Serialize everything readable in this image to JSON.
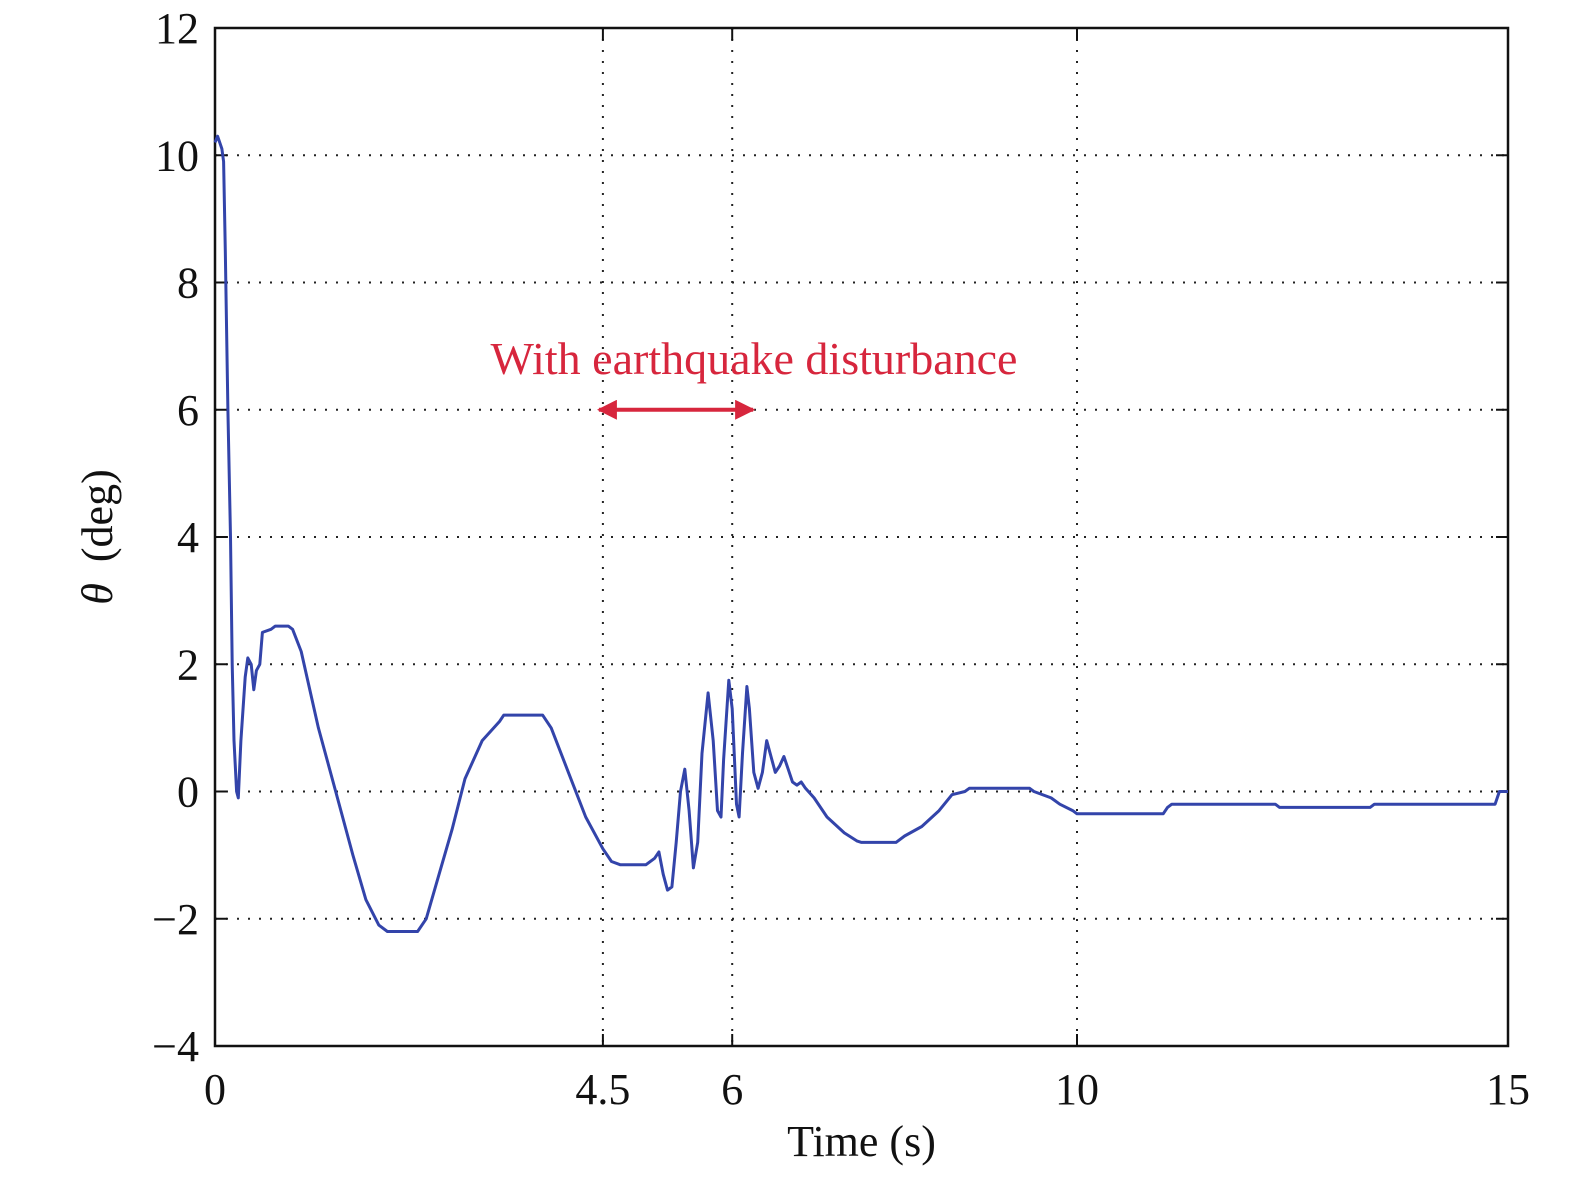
{
  "chart_data": {
    "type": "line",
    "xlabel": "Time (s)",
    "ylabel_symbol": "θ",
    "ylabel_unit": "(deg)",
    "xlim": [
      0,
      15
    ],
    "ylim": [
      -4,
      12
    ],
    "xticks": [
      0,
      4.5,
      6,
      10,
      15
    ],
    "xtick_labels": [
      "0",
      "4.5",
      "6",
      "10",
      "15"
    ],
    "yticks": [
      12,
      10,
      8,
      6,
      4,
      2,
      0,
      -2,
      -4
    ],
    "ytick_labels": [
      "12",
      "10",
      "8",
      "6",
      "4",
      "2",
      "0",
      "−2",
      "−4"
    ],
    "grid": true,
    "annotation": {
      "text": "With earthquake disturbance",
      "color": "#d7263d",
      "arrow_from": 4.5,
      "arrow_to": 6.15,
      "y": 6
    },
    "series": [
      {
        "color": "#3344aa",
        "points": [
          [
            0,
            10.2
          ],
          [
            0.03,
            10.3
          ],
          [
            0.08,
            10.1
          ],
          [
            0.1,
            9.9
          ],
          [
            0.12,
            8.5
          ],
          [
            0.15,
            6.0
          ],
          [
            0.18,
            4.0
          ],
          [
            0.2,
            2.0
          ],
          [
            0.22,
            0.8
          ],
          [
            0.25,
            0.0
          ],
          [
            0.27,
            -0.1
          ],
          [
            0.3,
            0.8
          ],
          [
            0.35,
            1.8
          ],
          [
            0.38,
            2.1
          ],
          [
            0.42,
            2.0
          ],
          [
            0.45,
            1.6
          ],
          [
            0.48,
            1.9
          ],
          [
            0.52,
            2.0
          ],
          [
            0.55,
            2.5
          ],
          [
            0.65,
            2.55
          ],
          [
            0.7,
            2.6
          ],
          [
            0.85,
            2.6
          ],
          [
            0.9,
            2.55
          ],
          [
            1.0,
            2.2
          ],
          [
            1.2,
            1.0
          ],
          [
            1.4,
            0.0
          ],
          [
            1.6,
            -1.0
          ],
          [
            1.75,
            -1.7
          ],
          [
            1.9,
            -2.1
          ],
          [
            2.0,
            -2.2
          ],
          [
            2.35,
            -2.2
          ],
          [
            2.45,
            -2.0
          ],
          [
            2.6,
            -1.3
          ],
          [
            2.75,
            -0.6
          ],
          [
            2.9,
            0.2
          ],
          [
            3.1,
            0.8
          ],
          [
            3.3,
            1.1
          ],
          [
            3.35,
            1.2
          ],
          [
            3.8,
            1.2
          ],
          [
            3.9,
            1.0
          ],
          [
            4.1,
            0.3
          ],
          [
            4.3,
            -0.4
          ],
          [
            4.5,
            -0.9
          ],
          [
            4.6,
            -1.1
          ],
          [
            4.7,
            -1.15
          ],
          [
            5.0,
            -1.15
          ],
          [
            5.1,
            -1.05
          ],
          [
            5.15,
            -0.95
          ],
          [
            5.2,
            -1.3
          ],
          [
            5.25,
            -1.55
          ],
          [
            5.3,
            -1.5
          ],
          [
            5.35,
            -0.8
          ],
          [
            5.4,
            0.0
          ],
          [
            5.45,
            0.35
          ],
          [
            5.5,
            -0.3
          ],
          [
            5.55,
            -1.2
          ],
          [
            5.6,
            -0.8
          ],
          [
            5.65,
            0.6
          ],
          [
            5.72,
            1.55
          ],
          [
            5.78,
            0.8
          ],
          [
            5.83,
            -0.3
          ],
          [
            5.87,
            -0.4
          ],
          [
            5.9,
            0.5
          ],
          [
            5.96,
            1.75
          ],
          [
            6.0,
            1.3
          ],
          [
            6.05,
            -0.2
          ],
          [
            6.08,
            -0.4
          ],
          [
            6.12,
            0.6
          ],
          [
            6.17,
            1.65
          ],
          [
            6.2,
            1.3
          ],
          [
            6.25,
            0.3
          ],
          [
            6.3,
            0.05
          ],
          [
            6.35,
            0.3
          ],
          [
            6.4,
            0.8
          ],
          [
            6.45,
            0.55
          ],
          [
            6.5,
            0.3
          ],
          [
            6.55,
            0.4
          ],
          [
            6.6,
            0.55
          ],
          [
            6.65,
            0.35
          ],
          [
            6.7,
            0.15
          ],
          [
            6.75,
            0.1
          ],
          [
            6.8,
            0.15
          ],
          [
            6.85,
            0.05
          ],
          [
            6.95,
            -0.1
          ],
          [
            7.1,
            -0.4
          ],
          [
            7.3,
            -0.65
          ],
          [
            7.45,
            -0.78
          ],
          [
            7.5,
            -0.8
          ],
          [
            7.9,
            -0.8
          ],
          [
            8.0,
            -0.7
          ],
          [
            8.2,
            -0.55
          ],
          [
            8.4,
            -0.3
          ],
          [
            8.55,
            -0.05
          ],
          [
            8.7,
            0.0
          ],
          [
            8.75,
            0.05
          ],
          [
            9.45,
            0.05
          ],
          [
            9.5,
            0.0
          ],
          [
            9.7,
            -0.1
          ],
          [
            9.8,
            -0.2
          ],
          [
            9.95,
            -0.3
          ],
          [
            10.0,
            -0.35
          ],
          [
            11.0,
            -0.35
          ],
          [
            11.05,
            -0.25
          ],
          [
            11.1,
            -0.2
          ],
          [
            12.3,
            -0.2
          ],
          [
            12.35,
            -0.25
          ],
          [
            13.4,
            -0.25
          ],
          [
            13.45,
            -0.2
          ],
          [
            14.85,
            -0.2
          ],
          [
            14.9,
            0.0
          ],
          [
            15.0,
            0.0
          ]
        ]
      }
    ]
  }
}
